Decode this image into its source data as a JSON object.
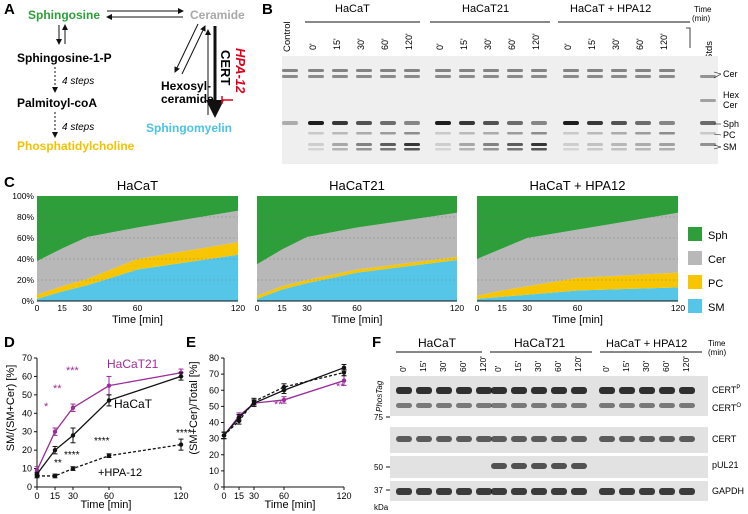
{
  "panel_letters": [
    "A",
    "B",
    "C",
    "D",
    "E",
    "F"
  ],
  "panelA": {
    "sphingosine": "Sphingosine",
    "ceramide": "Ceramide",
    "s1p": "Sphingosine-1-P",
    "steps1": "4 steps",
    "palmitoyl": "Palmitoyl-coA",
    "steps2": "4 steps",
    "pc": "Phosphatidylcholine",
    "hexosyl1": "Hexosyl-",
    "hexosyl2": "ceramide",
    "cert": "CERT",
    "hpa": "HPA-12",
    "sphingomyelin": "Sphingomyelin",
    "colors": {
      "sph": "#2e9e3a",
      "cer": "#a9a9a9",
      "pc": "#f2c200",
      "sm": "#4cc3e6",
      "hpa": "#e0001b"
    }
  },
  "panelB": {
    "control": "Control",
    "groups": [
      "HaCaT",
      "HaCaT21",
      "HaCaT + HPA12"
    ],
    "times": [
      "0'",
      "15'",
      "30'",
      "60'",
      "120'"
    ],
    "time_label1": "Time",
    "time_label2": "(min)",
    "stds": "Stds",
    "band_labels": [
      "Cer",
      "Hex",
      "Cer",
      "Sph",
      "PC",
      "SM"
    ]
  },
  "chart_data": [
    {
      "type": "area",
      "title": "HaCaT",
      "x": [
        0,
        15,
        30,
        60,
        120
      ],
      "xlabel": "Time [min]",
      "ylim": [
        0,
        100
      ],
      "yticks": [
        "0%",
        "20%",
        "40%",
        "60%",
        "80%",
        "100%"
      ],
      "series": [
        {
          "name": "SM",
          "values": [
            2,
            9,
            15,
            30,
            44
          ]
        },
        {
          "name": "PC",
          "values": [
            4,
            5,
            6,
            10,
            12
          ]
        },
        {
          "name": "Cer",
          "values": [
            32,
            36,
            40,
            30,
            30
          ]
        },
        {
          "name": "Sph",
          "values": [
            62,
            50,
            39,
            30,
            14
          ]
        }
      ]
    },
    {
      "type": "area",
      "title": "HaCaT21",
      "x": [
        0,
        15,
        30,
        60,
        120
      ],
      "xlabel": "Time [min]",
      "ylim": [
        0,
        100
      ],
      "series": [
        {
          "name": "SM",
          "values": [
            2,
            11,
            17,
            27,
            39
          ]
        },
        {
          "name": "PC",
          "values": [
            3,
            3,
            3,
            3,
            3
          ]
        },
        {
          "name": "Cer",
          "values": [
            30,
            35,
            41,
            40,
            42
          ]
        },
        {
          "name": "Sph",
          "values": [
            65,
            51,
            39,
            30,
            16
          ]
        }
      ]
    },
    {
      "type": "area",
      "title": "HaCaT + HPA12",
      "x": [
        0,
        15,
        30,
        60,
        120
      ],
      "xlabel": "Time [min]",
      "ylim": [
        0,
        100
      ],
      "series": [
        {
          "name": "SM",
          "values": [
            2,
            4,
            6,
            10,
            13
          ]
        },
        {
          "name": "PC",
          "values": [
            3,
            6,
            8,
            12,
            14
          ]
        },
        {
          "name": "Cer",
          "values": [
            35,
            40,
            46,
            46,
            57
          ]
        },
        {
          "name": "Sph",
          "values": [
            60,
            50,
            40,
            32,
            16
          ]
        }
      ]
    },
    {
      "type": "line",
      "x": [
        0,
        15,
        30,
        60,
        120
      ],
      "xlabel": "Time [min]",
      "ylabel": "SM/(SM+Cer) [%]",
      "ylim": [
        0,
        70
      ],
      "yticks": [
        0,
        10,
        20,
        30,
        40,
        50,
        60,
        70
      ],
      "series": [
        {
          "name": "HaCaT21",
          "values": [
            9,
            30,
            43,
            55,
            62
          ]
        },
        {
          "name": "HaCaT",
          "values": [
            7,
            20,
            28,
            47,
            60
          ]
        },
        {
          "name": "+HPA-12",
          "values": [
            6,
            6,
            10,
            17,
            23
          ]
        }
      ],
      "annotations": [
        "*",
        "**",
        "***",
        "**",
        "****",
        "****",
        "****",
        "****"
      ]
    },
    {
      "type": "line",
      "x": [
        0,
        15,
        30,
        60,
        120
      ],
      "xlabel": "Time [min]",
      "ylabel": "(SM+Cer)/Total [%]",
      "ylim": [
        0,
        80
      ],
      "yticks": [
        0,
        10,
        20,
        30,
        40,
        50,
        60,
        70,
        80
      ],
      "series": [
        {
          "values": [
            32,
            44,
            52,
            54,
            66
          ]
        },
        {
          "values": [
            32,
            43,
            52,
            60,
            74
          ]
        },
        {
          "values": [
            32,
            41,
            53,
            62,
            71
          ]
        }
      ],
      "annotations": [
        "**",
        "**"
      ]
    }
  ],
  "panelC": {
    "legend": [
      {
        "label": "Sph",
        "color": "#2e9e3a"
      },
      {
        "label": "Cer",
        "color": "#b8b8b8"
      },
      {
        "label": "PC",
        "color": "#f7c600"
      },
      {
        "label": "SM",
        "color": "#55c6e8"
      }
    ],
    "xticks": [
      "0",
      "15",
      "30",
      "60",
      "120"
    ]
  },
  "panelD": {
    "label_hacat21": "HaCaT21",
    "label_hacat": "HaCaT",
    "label_hpa": "+HPA-12",
    "star1": "*",
    "star2": "**",
    "star3": "***",
    "star4": "**",
    "star5": "****",
    "star6": "****",
    "star7": "****",
    "star8": "****"
  },
  "panelE": {
    "star1": "**",
    "star2": "**"
  },
  "panelF": {
    "groups": [
      "HaCaT",
      "HaCaT21",
      "HaCaT + HPA12"
    ],
    "times": [
      "0'",
      "15'",
      "30'",
      "60'",
      "120'"
    ],
    "time_label1": "Time",
    "time_label2": "(min)",
    "phostag": "PhosTag",
    "mw75": "75",
    "mw50": "50",
    "mw37": "37",
    "kda": "kDa",
    "cert_p": "CERT",
    "cert_p_sup": "P",
    "cert_o": "CERT",
    "cert_o_sup": "O",
    "cert": "CERT",
    "pul21": "pUL21",
    "gapdh": "GAPDH"
  },
  "colors": {
    "purple": "#9b2d9b",
    "black": "#111111",
    "sph": "#2e9e3a",
    "cer": "#b8b8b8",
    "pc": "#f7c600",
    "sm": "#55c6e8"
  }
}
